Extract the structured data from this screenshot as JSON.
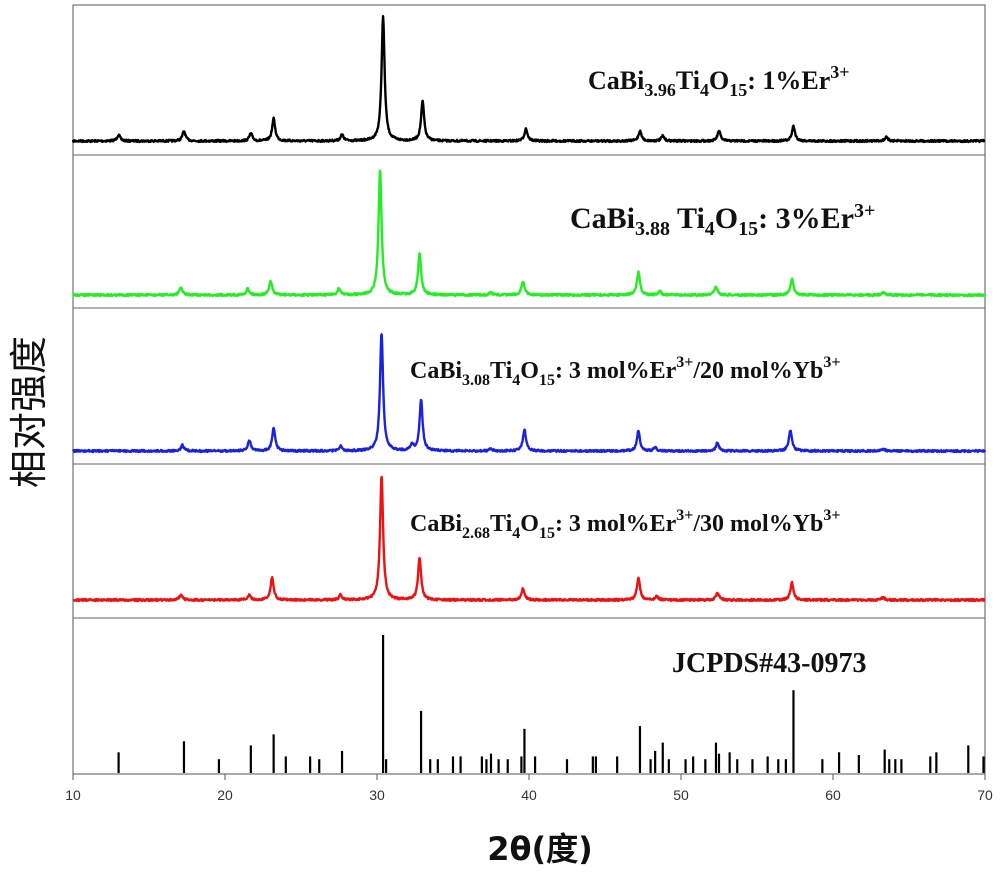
{
  "chart_data": {
    "type": "line",
    "xlabel": "2θ(度)",
    "ylabel": "相对强度",
    "xlim": [
      10,
      70
    ],
    "xticks": [
      10,
      20,
      30,
      40,
      50,
      60,
      70
    ],
    "series": [
      {
        "name": "CaBi3.96Ti4O15: 1%Er3+",
        "label_parts": {
          "main": "CaBi",
          "sub1": "3.96",
          "mid": "Ti",
          "sub2": "4",
          "mid2": "O",
          "sub3": "15",
          "tail": ":  1%Er",
          "sup": "3+",
          "end": ""
        },
        "color": "#000000",
        "baseline": 2,
        "peaks": [
          [
            13.0,
            0.05
          ],
          [
            17.3,
            0.08
          ],
          [
            21.7,
            0.06
          ],
          [
            23.2,
            0.18
          ],
          [
            27.7,
            0.05
          ],
          [
            30.4,
            1.0
          ],
          [
            33.0,
            0.32
          ],
          [
            39.8,
            0.1
          ],
          [
            47.3,
            0.08
          ],
          [
            48.8,
            0.04
          ],
          [
            52.5,
            0.08
          ],
          [
            57.4,
            0.12
          ],
          [
            63.5,
            0.03
          ]
        ]
      },
      {
        "name": "CaBi3.88 Ti4O15: 3%Er3+",
        "label_parts": {
          "main": "CaBi",
          "sub1": "3.88",
          "mid": " Ti",
          "sub2": "4",
          "mid2": "O",
          "sub3": "15",
          "tail": ": 3%Er",
          "sup": "3+",
          "end": ""
        },
        "color": "#22ee22",
        "baseline": 2,
        "peaks": [
          [
            17.1,
            0.06
          ],
          [
            21.5,
            0.05
          ],
          [
            23.0,
            0.11
          ],
          [
            27.5,
            0.05
          ],
          [
            30.2,
            1.0
          ],
          [
            32.8,
            0.33
          ],
          [
            37.5,
            0.02
          ],
          [
            39.6,
            0.11
          ],
          [
            47.2,
            0.18
          ],
          [
            48.6,
            0.03
          ],
          [
            52.3,
            0.07
          ],
          [
            57.3,
            0.13
          ],
          [
            63.3,
            0.02
          ]
        ]
      },
      {
        "name": "CaBi3.08Ti4O15: 3 mol%Er3+/20 mol%Yb3+",
        "label_parts": {
          "main": "CaBi",
          "sub1": "3.08",
          "mid": "Ti",
          "sub2": "4",
          "mid2": "O",
          "sub3": "15",
          "tail": ": 3 mol%Er",
          "sup": "3+",
          "end": "/20 mol%Yb",
          "sup2": "3+"
        },
        "color": "#1a22dd",
        "baseline": 2,
        "peaks": [
          [
            17.2,
            0.05
          ],
          [
            21.6,
            0.09
          ],
          [
            23.2,
            0.2
          ],
          [
            27.6,
            0.04
          ],
          [
            30.3,
            1.0
          ],
          [
            32.3,
            0.05
          ],
          [
            32.9,
            0.43
          ],
          [
            37.5,
            0.02
          ],
          [
            39.7,
            0.18
          ],
          [
            47.2,
            0.17
          ],
          [
            48.3,
            0.03
          ],
          [
            52.4,
            0.07
          ],
          [
            57.2,
            0.18
          ],
          [
            63.3,
            0.02
          ]
        ]
      },
      {
        "name": "CaBi2.68Ti4O15: 3 mol%Er3+/30 mol%Yb3+",
        "label_parts": {
          "main": "CaBi",
          "sub1": "2.68",
          "mid": "Ti",
          "sub2": "4",
          "mid2": "O",
          "sub3": "15",
          "tail": ": 3 mol%Er",
          "sup": "3+",
          "end": "/30 mol%Yb",
          "sup2": "3+"
        },
        "color": "#ee1111",
        "baseline": 2,
        "peaks": [
          [
            17.1,
            0.04
          ],
          [
            21.6,
            0.04
          ],
          [
            23.1,
            0.18
          ],
          [
            27.6,
            0.04
          ],
          [
            30.3,
            1.0
          ],
          [
            32.8,
            0.34
          ],
          [
            39.6,
            0.09
          ],
          [
            47.2,
            0.18
          ],
          [
            48.4,
            0.03
          ],
          [
            52.4,
            0.06
          ],
          [
            57.3,
            0.14
          ],
          [
            63.3,
            0.02
          ]
        ]
      }
    ],
    "reference": {
      "name": "JCPDS#43-0973",
      "color": "#000000",
      "lines": [
        [
          13.0,
          0.15
        ],
        [
          17.3,
          0.23
        ],
        [
          19.6,
          0.1
        ],
        [
          21.7,
          0.2
        ],
        [
          23.2,
          0.28
        ],
        [
          24.0,
          0.12
        ],
        [
          25.6,
          0.12
        ],
        [
          26.2,
          0.1
        ],
        [
          27.7,
          0.16
        ],
        [
          30.4,
          1.0
        ],
        [
          30.6,
          0.1
        ],
        [
          32.9,
          0.45
        ],
        [
          33.5,
          0.1
        ],
        [
          34.0,
          0.1
        ],
        [
          35.0,
          0.12
        ],
        [
          35.5,
          0.12
        ],
        [
          36.9,
          0.12
        ],
        [
          37.2,
          0.1
        ],
        [
          37.5,
          0.14
        ],
        [
          38.0,
          0.1
        ],
        [
          38.6,
          0.1
        ],
        [
          39.5,
          0.12
        ],
        [
          39.7,
          0.32
        ],
        [
          40.4,
          0.12
        ],
        [
          42.5,
          0.1
        ],
        [
          44.2,
          0.12
        ],
        [
          44.4,
          0.12
        ],
        [
          45.8,
          0.12
        ],
        [
          47.3,
          0.34
        ],
        [
          48.0,
          0.1
        ],
        [
          48.3,
          0.16
        ],
        [
          48.8,
          0.22
        ],
        [
          49.2,
          0.1
        ],
        [
          50.3,
          0.1
        ],
        [
          50.8,
          0.12
        ],
        [
          51.6,
          0.1
        ],
        [
          52.3,
          0.22
        ],
        [
          52.5,
          0.14
        ],
        [
          53.2,
          0.15
        ],
        [
          53.7,
          0.1
        ],
        [
          54.7,
          0.1
        ],
        [
          55.7,
          0.12
        ],
        [
          56.4,
          0.1
        ],
        [
          56.9,
          0.1
        ],
        [
          57.4,
          0.6
        ],
        [
          59.3,
          0.1
        ],
        [
          60.4,
          0.15
        ],
        [
          61.7,
          0.13
        ],
        [
          63.4,
          0.17
        ],
        [
          63.7,
          0.1
        ],
        [
          64.1,
          0.1
        ],
        [
          64.5,
          0.1
        ],
        [
          66.4,
          0.12
        ],
        [
          66.8,
          0.15
        ],
        [
          68.9,
          0.2
        ],
        [
          69.9,
          0.12
        ]
      ]
    }
  }
}
